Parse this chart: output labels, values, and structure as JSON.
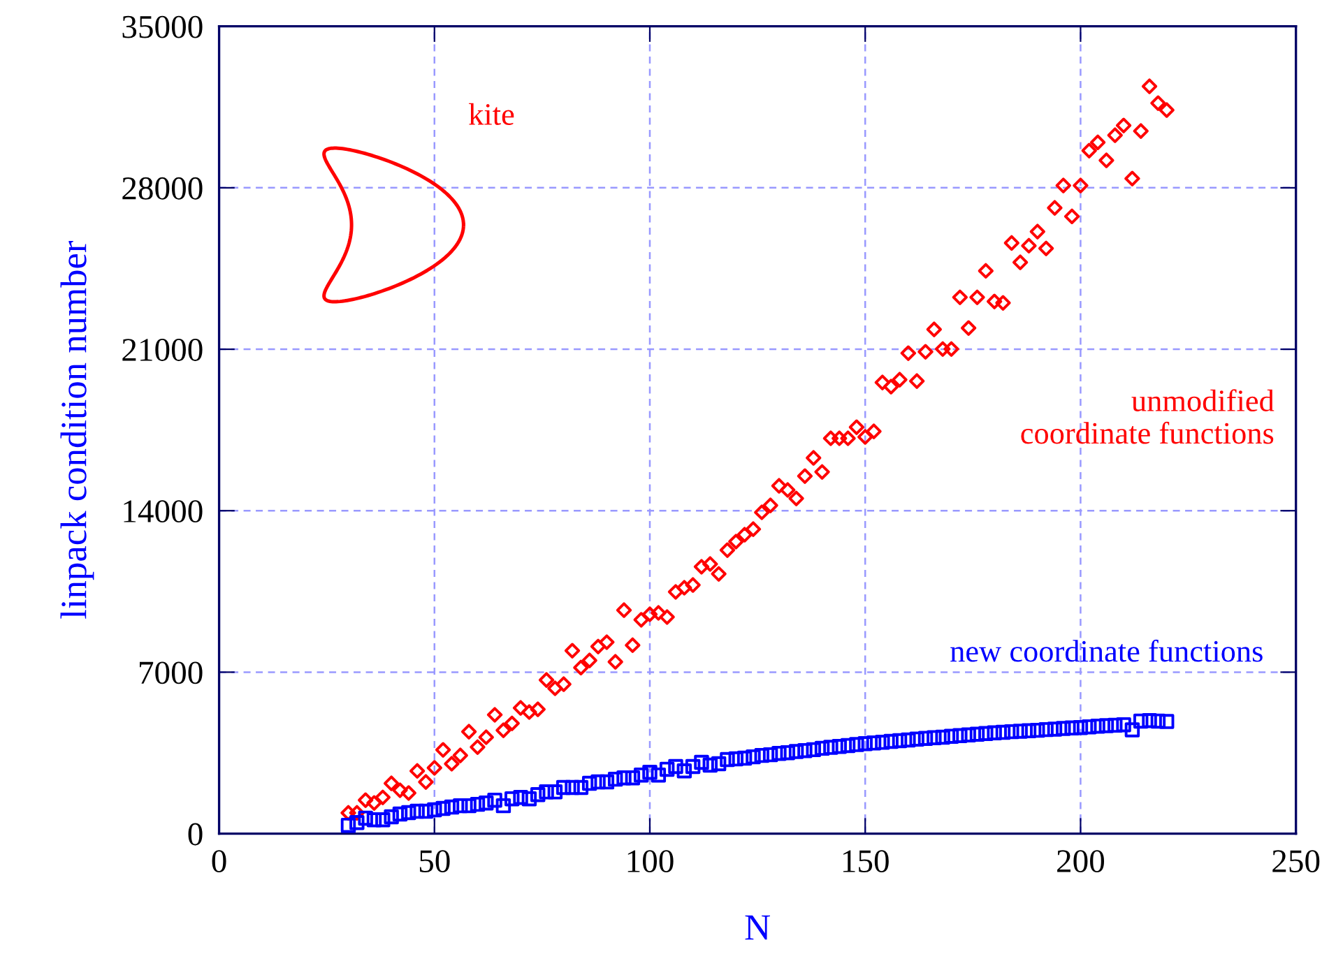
{
  "chart_data": {
    "type": "scatter",
    "xlabel": "N",
    "ylabel": "linpack condition number",
    "xlim": [
      0,
      250
    ],
    "xticks": [
      0,
      50,
      100,
      150,
      200,
      250
    ],
    "ylim": [
      0,
      35000
    ],
    "yticks": [
      0,
      7000,
      14000,
      21000,
      28000,
      35000
    ],
    "grid": true,
    "annotations": [
      "kite"
    ],
    "x": [
      30,
      32,
      34,
      36,
      38,
      40,
      42,
      44,
      46,
      48,
      50,
      52,
      54,
      56,
      58,
      60,
      62,
      64,
      66,
      68,
      70,
      72,
      74,
      76,
      78,
      80,
      82,
      84,
      86,
      88,
      90,
      92,
      94,
      96,
      98,
      100,
      102,
      104,
      106,
      108,
      110,
      112,
      114,
      116,
      118,
      120,
      122,
      124,
      126,
      128,
      130,
      132,
      134,
      136,
      138,
      140,
      142,
      144,
      146,
      148,
      150,
      152,
      154,
      156,
      158,
      160,
      162,
      164,
      166,
      168,
      170,
      172,
      174,
      176,
      178,
      180,
      182,
      184,
      186,
      188,
      190,
      192,
      194,
      196,
      198,
      200,
      202,
      204,
      206,
      208,
      210,
      212,
      214,
      216,
      218,
      220
    ],
    "series": [
      {
        "name": "unmodified\ncoordinate functions",
        "color": "#ff0000",
        "marker": "diamond",
        "values": [
          900,
          900,
          1450,
          1330,
          1570,
          2180,
          1880,
          1760,
          2720,
          2240,
          2850,
          3630,
          3030,
          3390,
          4420,
          3750,
          4180,
          5150,
          4480,
          4780,
          5450,
          5270,
          5390,
          6660,
          6300,
          6480,
          7930,
          7200,
          7510,
          8110,
          8300,
          7450,
          9690,
          8170,
          9270,
          9510,
          9570,
          9390,
          10480,
          10660,
          10780,
          11570,
          11690,
          11260,
          12290,
          12660,
          12960,
          13200,
          13930,
          14230,
          15080,
          14900,
          14530,
          15500,
          16290,
          15680,
          17140,
          17140,
          17140,
          17620,
          17200,
          17440,
          19560,
          19380,
          19680,
          20830,
          19620,
          20890,
          21860,
          21010,
          21010,
          23250,
          21920,
          23250,
          24400,
          23070,
          23010,
          25610,
          24770,
          25490,
          26100,
          25370,
          27130,
          28100,
          26760,
          28100,
          29610,
          29970,
          29190,
          30280,
          30700,
          28400,
          30460,
          32400,
          31670,
          31370
        ]
      },
      {
        "name": "new coordinate functions",
        "color": "#0000ff",
        "marker": "square",
        "values": [
          360,
          480,
          670,
          600,
          600,
          730,
          850,
          910,
          970,
          970,
          1030,
          1090,
          1150,
          1210,
          1210,
          1270,
          1330,
          1450,
          1210,
          1510,
          1570,
          1510,
          1690,
          1810,
          1810,
          2000,
          2000,
          2000,
          2180,
          2240,
          2240,
          2360,
          2420,
          2420,
          2540,
          2660,
          2540,
          2790,
          2910,
          2720,
          2910,
          3090,
          2970,
          3030,
          3210,
          3240,
          3270,
          3330,
          3390,
          3420,
          3480,
          3510,
          3560,
          3600,
          3640,
          3700,
          3740,
          3780,
          3820,
          3860,
          3900,
          3930,
          3960,
          4000,
          4030,
          4060,
          4100,
          4130,
          4160,
          4180,
          4220,
          4250,
          4280,
          4310,
          4340,
          4370,
          4390,
          4420,
          4440,
          4460,
          4480,
          4510,
          4530,
          4560,
          4580,
          4600,
          4630,
          4660,
          4680,
          4700,
          4720,
          4500,
          4880,
          4900,
          4880,
          4860
        ]
      }
    ]
  }
}
